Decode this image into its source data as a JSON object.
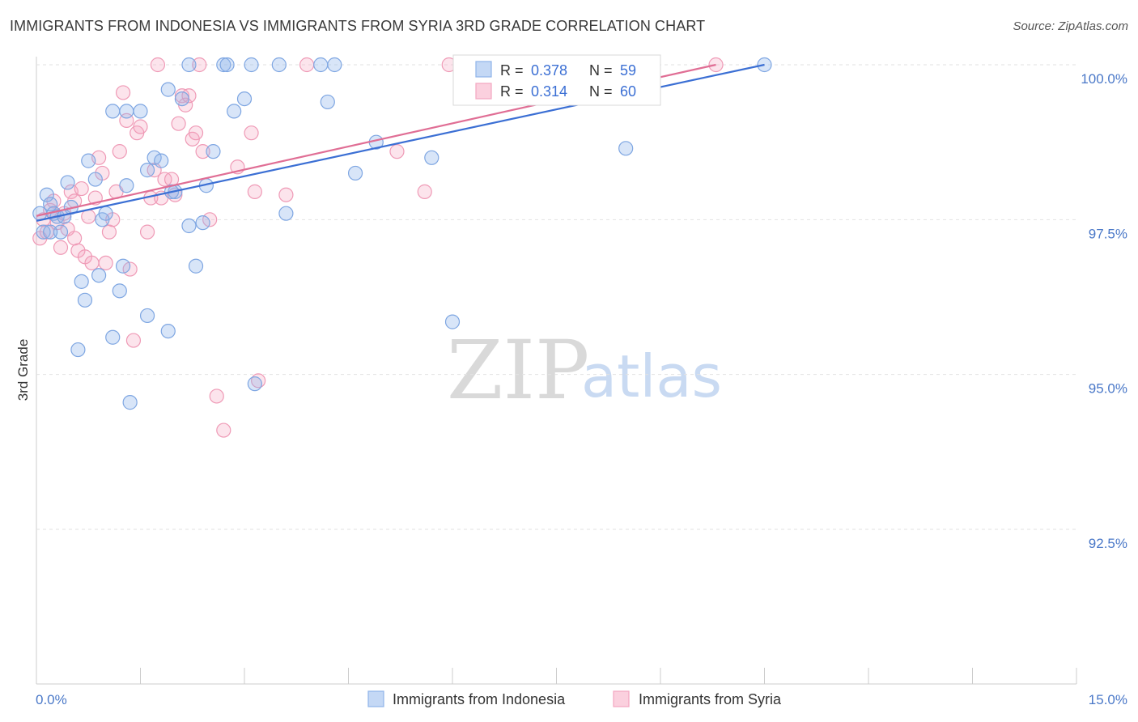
{
  "header": {
    "title": "IMMIGRANTS FROM INDONESIA VS IMMIGRANTS FROM SYRIA 3RD GRADE CORRELATION CHART",
    "source": "Source: ZipAtlas.com"
  },
  "watermark": {
    "zip": "ZIP",
    "atlas": "atlas"
  },
  "colors": {
    "indonesia": "#8fb4ea",
    "indonesia_line": "#3b6fd4",
    "syria": "#f4a6c0",
    "syria_line": "#e06e95"
  },
  "legend": {
    "rows": [
      {
        "r_label": "R =",
        "r_value": "0.378",
        "n_label": "N =",
        "n_value": "59"
      },
      {
        "r_label": "R =",
        "r_value": "0.314",
        "n_label": "N =",
        "n_value": "60"
      }
    ]
  },
  "chart_data": {
    "type": "scatter",
    "title": "IMMIGRANTS FROM INDONESIA VS IMMIGRANTS FROM SYRIA 3RD GRADE CORRELATION CHART",
    "xlabel": "",
    "ylabel": "3rd Grade",
    "xlim": [
      0,
      15
    ],
    "ylim": [
      90.3,
      100.3
    ],
    "x_tick_labels": [
      "0.0%",
      "15.0%"
    ],
    "y_ticks": [
      92.5,
      95.0,
      97.5,
      100.0
    ],
    "y_tick_labels": [
      "92.5%",
      "95.0%",
      "97.5%",
      "100.0%"
    ],
    "series": [
      {
        "name": "Immigrants from Indonesia",
        "r": 0.378,
        "n": 59,
        "trend": {
          "x": [
            0,
            10.5
          ],
          "y": [
            97.48,
            100.0
          ]
        },
        "points": [
          [
            0.05,
            97.6
          ],
          [
            0.1,
            97.3
          ],
          [
            0.15,
            97.9
          ],
          [
            0.2,
            97.75
          ],
          [
            0.25,
            97.6
          ],
          [
            0.3,
            97.55
          ],
          [
            0.35,
            97.3
          ],
          [
            0.45,
            98.1
          ],
          [
            0.5,
            97.7
          ],
          [
            0.6,
            95.4
          ],
          [
            0.65,
            96.5
          ],
          [
            0.7,
            96.2
          ],
          [
            0.75,
            98.45
          ],
          [
            0.85,
            98.15
          ],
          [
            0.9,
            96.6
          ],
          [
            0.95,
            97.5
          ],
          [
            1.0,
            97.6
          ],
          [
            1.1,
            95.6
          ],
          [
            1.1,
            99.25
          ],
          [
            1.2,
            96.35
          ],
          [
            1.25,
            96.75
          ],
          [
            1.3,
            98.05
          ],
          [
            1.3,
            99.25
          ],
          [
            1.35,
            94.55
          ],
          [
            1.5,
            99.25
          ],
          [
            1.6,
            98.3
          ],
          [
            1.6,
            95.95
          ],
          [
            1.7,
            98.5
          ],
          [
            1.8,
            98.45
          ],
          [
            1.9,
            95.7
          ],
          [
            1.9,
            99.6
          ],
          [
            2.0,
            97.95
          ],
          [
            2.1,
            99.45
          ],
          [
            2.2,
            100.0
          ],
          [
            2.2,
            97.4
          ],
          [
            2.3,
            96.75
          ],
          [
            2.4,
            97.45
          ],
          [
            2.45,
            98.05
          ],
          [
            2.55,
            98.6
          ],
          [
            2.7,
            100.0
          ],
          [
            2.75,
            100.0
          ],
          [
            2.85,
            99.25
          ],
          [
            3.0,
            99.45
          ],
          [
            3.1,
            100.0
          ],
          [
            3.15,
            94.85
          ],
          [
            3.5,
            100.0
          ],
          [
            3.6,
            97.6
          ],
          [
            4.1,
            100.0
          ],
          [
            4.2,
            99.4
          ],
          [
            4.3,
            100.0
          ],
          [
            4.6,
            98.25
          ],
          [
            4.9,
            98.75
          ],
          [
            5.7,
            98.5
          ],
          [
            6.0,
            95.85
          ],
          [
            8.5,
            98.65
          ],
          [
            10.5,
            100.0
          ],
          [
            0.2,
            97.3
          ],
          [
            0.4,
            97.55
          ],
          [
            1.95,
            97.95
          ]
        ]
      },
      {
        "name": "Immigrants from Syria",
        "r": 0.314,
        "n": 60,
        "trend": {
          "x": [
            0,
            9.8
          ],
          "y": [
            97.56,
            100.0
          ]
        },
        "points": [
          [
            0.05,
            97.2
          ],
          [
            0.1,
            97.5
          ],
          [
            0.15,
            97.3
          ],
          [
            0.2,
            97.65
          ],
          [
            0.25,
            97.8
          ],
          [
            0.3,
            97.45
          ],
          [
            0.35,
            97.05
          ],
          [
            0.4,
            97.6
          ],
          [
            0.45,
            97.35
          ],
          [
            0.5,
            97.95
          ],
          [
            0.55,
            97.2
          ],
          [
            0.6,
            97.0
          ],
          [
            0.65,
            98.0
          ],
          [
            0.7,
            96.9
          ],
          [
            0.8,
            96.8
          ],
          [
            0.85,
            97.85
          ],
          [
            0.9,
            98.5
          ],
          [
            0.95,
            98.25
          ],
          [
            1.0,
            96.8
          ],
          [
            1.05,
            97.3
          ],
          [
            1.1,
            97.5
          ],
          [
            1.15,
            97.95
          ],
          [
            1.2,
            98.6
          ],
          [
            1.3,
            99.1
          ],
          [
            1.35,
            96.7
          ],
          [
            1.4,
            95.55
          ],
          [
            1.45,
            98.9
          ],
          [
            1.5,
            99.0
          ],
          [
            1.6,
            97.3
          ],
          [
            1.65,
            97.85
          ],
          [
            1.7,
            98.3
          ],
          [
            1.8,
            97.85
          ],
          [
            1.85,
            98.15
          ],
          [
            1.95,
            98.15
          ],
          [
            2.0,
            97.9
          ],
          [
            2.05,
            99.05
          ],
          [
            2.1,
            99.5
          ],
          [
            2.15,
            99.35
          ],
          [
            2.25,
            98.8
          ],
          [
            2.3,
            98.9
          ],
          [
            2.35,
            100.0
          ],
          [
            2.4,
            98.6
          ],
          [
            2.5,
            97.5
          ],
          [
            2.6,
            94.65
          ],
          [
            2.7,
            94.1
          ],
          [
            2.9,
            98.35
          ],
          [
            3.1,
            98.9
          ],
          [
            3.15,
            97.95
          ],
          [
            3.2,
            94.9
          ],
          [
            3.6,
            97.9
          ],
          [
            3.9,
            100.0
          ],
          [
            5.2,
            98.6
          ],
          [
            5.6,
            97.95
          ],
          [
            5.95,
            100.0
          ],
          [
            9.8,
            100.0
          ],
          [
            1.75,
            100.0
          ],
          [
            2.2,
            99.5
          ],
          [
            0.75,
            97.55
          ],
          [
            1.25,
            99.55
          ],
          [
            0.55,
            97.8
          ]
        ]
      }
    ]
  },
  "bottom_legend": [
    "Immigrants from Indonesia",
    "Immigrants from Syria"
  ]
}
